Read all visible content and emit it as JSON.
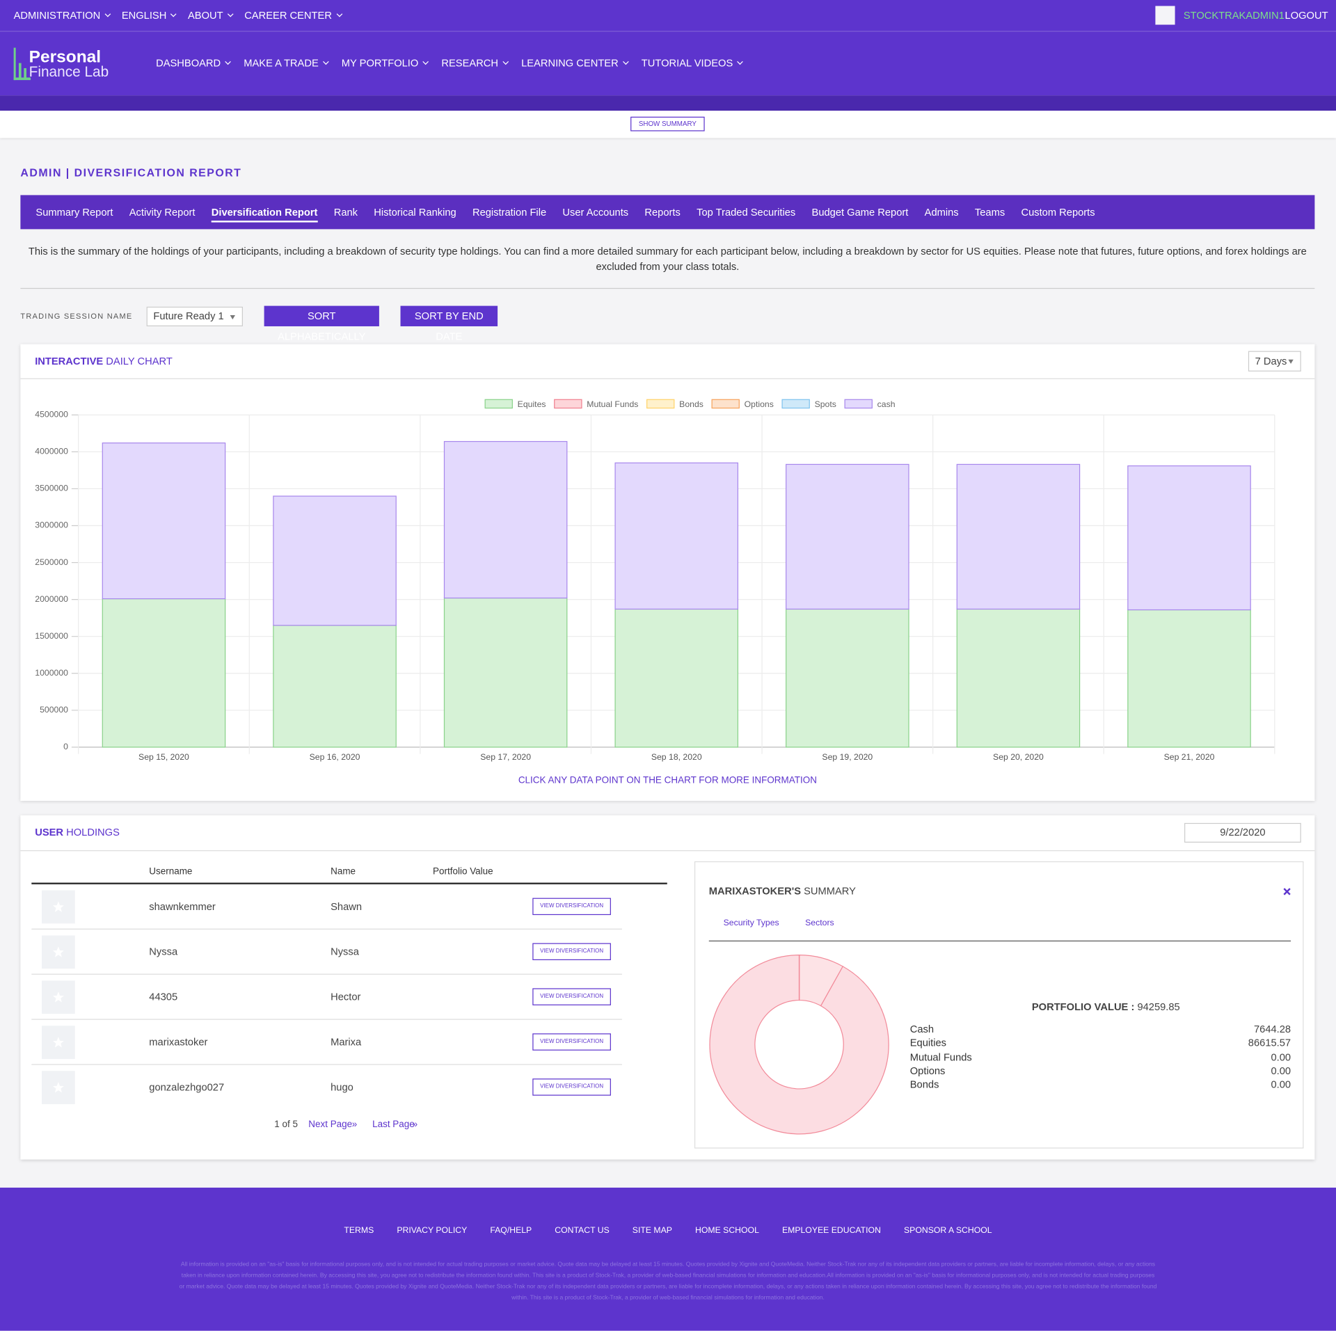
{
  "top_nav": {
    "items": [
      "ADMINISTRATION",
      "ENGLISH",
      "ABOUT",
      "CAREER CENTER"
    ],
    "user": "STOCKTRAKADMIN1",
    "logout": "LOGOUT"
  },
  "logo": {
    "line1": "Personal",
    "line2": "Finance Lab"
  },
  "main_nav": [
    "DASHBOARD",
    "MAKE A TRADE",
    "MY PORTFOLIO",
    "RESEARCH",
    "LEARNING CENTER",
    "TUTORIAL VIDEOS"
  ],
  "show_summary": "SHOW SUMMARY",
  "page_title": "ADMIN | DIVERSIFICATION REPORT",
  "tabs": [
    "Summary Report",
    "Activity Report",
    "Diversification Report",
    "Rank",
    "Historical Ranking",
    "Registration File",
    "User Accounts",
    "Reports",
    "Top Traded Securities",
    "Budget Game Report",
    "Admins",
    "Teams",
    "Custom Reports"
  ],
  "active_tab": 2,
  "intro": "This is the summary of the holdings of your participants, including a breakdown of security type holdings. You can find a more detailed summary for each participant below, including a breakdown by sector for US equities. Please note that futures, future options, and forex holdings are excluded from your class totals.",
  "session": {
    "label": "TRADING SESSION NAME",
    "value": "Future Ready 1",
    "sort_alpha": "SORT ALPHABETICALLY",
    "sort_date": "SORT BY END DATE"
  },
  "chart_panel": {
    "title_bold": "INTERACTIVE",
    "title_rest": "DAILY CHART",
    "range": "7 Days",
    "hint": "CLICK ANY DATA POINT ON THE CHART FOR MORE INFORMATION"
  },
  "chart_data": [
    {
      "type": "stacked_bar",
      "categories": [
        "Sep 15, 2020",
        "Sep 16, 2020",
        "Sep 17, 2020",
        "Sep 18, 2020",
        "Sep 19, 2020",
        "Sep 20, 2020",
        "Sep 21, 2020"
      ],
      "series": [
        {
          "name": "Equites",
          "color": "#8ad28a",
          "fill": "#d6f2d6",
          "values": [
            2010000,
            1650000,
            2020000,
            1870000,
            1870000,
            1870000,
            1860000
          ]
        },
        {
          "name": "Mutual Funds",
          "color": "#f0808f",
          "fill": "#fdd5d9",
          "values": [
            0,
            0,
            0,
            0,
            0,
            0,
            0
          ]
        },
        {
          "name": "Bonds",
          "color": "#ffd36a",
          "fill": "#fff1cc",
          "values": [
            0,
            0,
            0,
            0,
            0,
            0,
            0
          ]
        },
        {
          "name": "Options",
          "color": "#f7a35c",
          "fill": "#fde2cc",
          "values": [
            0,
            0,
            0,
            0,
            0,
            0,
            0
          ]
        },
        {
          "name": "Spots",
          "color": "#7fc3ee",
          "fill": "#cfe9f9",
          "values": [
            0,
            0,
            0,
            0,
            0,
            0,
            0
          ]
        },
        {
          "name": "cash",
          "color": "#a888ec",
          "fill": "#e3d9fd",
          "values": [
            2110000,
            1750000,
            2120000,
            1980000,
            1960000,
            1960000,
            1950000
          ]
        }
      ],
      "ylim": [
        0,
        4500000
      ],
      "yticks": [
        0,
        500000,
        1000000,
        1500000,
        2000000,
        2500000,
        3000000,
        3500000,
        4000000,
        4500000
      ],
      "grid": true
    },
    {
      "type": "donut",
      "categories": [
        "Cash",
        "Equities",
        "Mutual Funds",
        "Options",
        "Bonds"
      ],
      "values": [
        7644.28,
        86615.57,
        0,
        0,
        0
      ],
      "value_labels": [
        "7644.28",
        "86615.57",
        "0.00",
        "0.00",
        "0.00"
      ],
      "colors": [
        "#fde3e6",
        "#fcdde2",
        "#fcdde2",
        "#fde2cc",
        "#fff1cc"
      ],
      "border": "#f28b9a",
      "total_label": "PORTFOLIO VALUE :",
      "total": 94259.85
    }
  ],
  "holdings_panel": {
    "title_bold": "USER",
    "title_rest": "HOLDINGS",
    "date": "9/22/2020"
  },
  "table": {
    "headers": [
      "Username",
      "Name",
      "Portfolio Value"
    ],
    "button": "VIEW DIVERSIFICATION",
    "rows": [
      {
        "username": "shawnkemmer",
        "name": "Shawn"
      },
      {
        "username": "Nyssa",
        "name": "Nyssa"
      },
      {
        "username": "44305",
        "name": "Hector"
      },
      {
        "username": "marixastoker",
        "name": "Marixa"
      },
      {
        "username": "gonzalezhgo027",
        "name": "hugo"
      }
    ]
  },
  "pagination": {
    "page": "1 of 5",
    "next": "Next Page",
    "last": "Last Page",
    "arrow": "»"
  },
  "summary_panel": {
    "title_bold": "MARIXASTOKER'S",
    "title_rest": "SUMMARY",
    "tabs": [
      "Security Types",
      "Sectors"
    ]
  },
  "footer": {
    "links": [
      "TERMS",
      "PRIVACY POLICY",
      "FAQ/HELP",
      "CONTACT US",
      "SITE MAP",
      "HOME SCHOOL",
      "EMPLOYEE EDUCATION",
      "SPONSOR A SCHOOL"
    ],
    "disclaimer": "All information is provided on an \"as-is\" basis for informational purposes only, and is not intended for actual trading purposes or market advice. Quote data may be delayed at least 15 minutes. Quotes provided by Xignite and QuoteMedia. Neither Stock-Trak nor any of its independent data providers or partners, are liable for incomplete information, delays, or any actions taken in reliance upon information contained herein. By accessing this site, you agree not to redistribute the information found within. This site is a product of Stock-Trak, a provider of web-based financial simulations for information and education.All information is provided on an \"as-is\" basis for informational purposes only, and is not intended for actual trading purposes or market advice. Quote data may be delayed at least 15 minutes. Quotes provided by Xignite and QuoteMedia. Neither Stock-Trak nor any of its independent data providers or partners, are liable for incomplete information, delays, or any actions taken in reliance upon information contained herein. By accessing this site, you agree not to redistribute the information found within. This site is a product of Stock-Trak, a provider of web-based financial simulations for information and education."
  }
}
